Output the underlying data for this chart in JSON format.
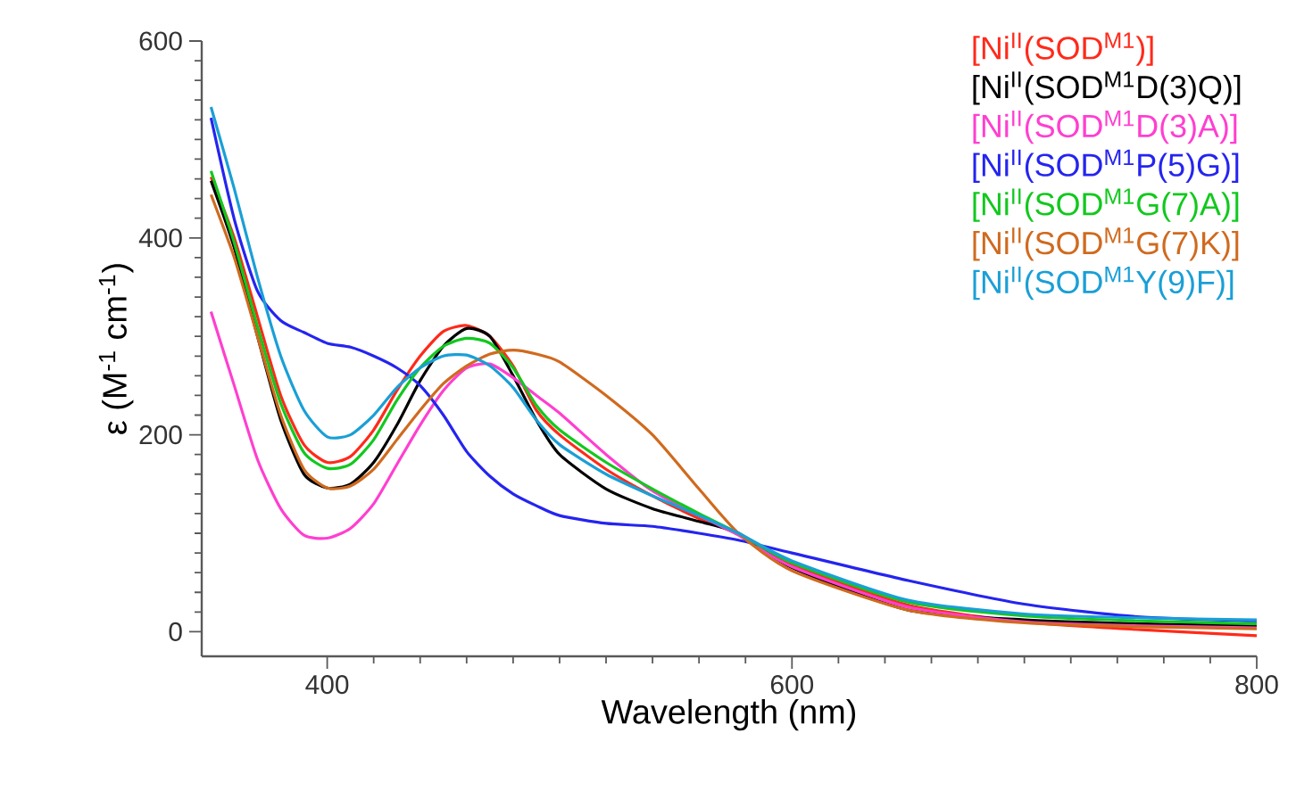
{
  "chart_data": {
    "type": "line",
    "xlabel": "Wavelength (nm)",
    "ylabel": "ε (M$^{-1}$ cm$^{-1}$)",
    "xlim": [
      346,
      800
    ],
    "ylim": [
      -25,
      600
    ],
    "xticks": [
      400,
      600,
      800
    ],
    "yticks": [
      0,
      200,
      400,
      600
    ],
    "grid": false,
    "legend": "top right",
    "marker": "none",
    "line_style": "solid",
    "x": [
      350,
      360,
      370,
      380,
      390,
      400,
      410,
      420,
      430,
      440,
      450,
      460,
      470,
      480,
      490,
      500,
      520,
      540,
      560,
      577,
      600,
      650,
      700,
      750,
      800
    ],
    "series": [
      {
        "name": "[Ni$^{II}$(SOD$^{M1}$)]",
        "color": "#ff2a1a",
        "values": [
          462,
          400,
          320,
          240,
          190,
          172,
          178,
          205,
          245,
          280,
          305,
          311,
          300,
          270,
          225,
          200,
          165,
          138,
          115,
          99,
          68,
          27,
          10,
          2,
          -4
        ]
      },
      {
        "name": "[Ni$^{II}$(SOD$^{M1}$D(3)Q)]",
        "color": "#000000",
        "values": [
          458,
          390,
          300,
          215,
          160,
          146,
          150,
          172,
          210,
          255,
          290,
          308,
          300,
          260,
          215,
          180,
          145,
          125,
          112,
          100,
          65,
          22,
          12,
          8,
          6
        ]
      },
      {
        "name": "[Ni$^{II}$(SOD$^{M1}$D(3)A)]",
        "color": "#ff3fd0",
        "values": [
          325,
          250,
          175,
          125,
          98,
          95,
          105,
          130,
          170,
          210,
          245,
          268,
          272,
          258,
          240,
          222,
          180,
          143,
          118,
          98,
          66,
          25,
          10,
          6,
          4
        ]
      },
      {
        "name": "[Ni$^{II}$(SOD$^{M1}$P(5)G)]",
        "color": "#2424f0",
        "values": [
          522,
          419,
          346,
          316,
          304,
          293,
          289,
          280,
          268,
          250,
          220,
          183,
          158,
          140,
          128,
          118,
          110,
          107,
          100,
          93,
          80,
          52,
          28,
          15,
          11
        ]
      },
      {
        "name": "[Ni$^{II}$(SOD$^{M1}$G(7)A)]",
        "color": "#12c81e",
        "values": [
          468,
          395,
          310,
          232,
          182,
          166,
          170,
          195,
          235,
          268,
          290,
          298,
          293,
          268,
          230,
          205,
          172,
          145,
          120,
          100,
          70,
          30,
          16,
          11,
          8
        ]
      },
      {
        "name": "[Ni$^{II}$(SOD$^{M1}$G(7)K)]",
        "color": "#d06a1e",
        "values": [
          444,
          380,
          300,
          220,
          165,
          146,
          148,
          165,
          195,
          225,
          252,
          270,
          282,
          286,
          282,
          274,
          240,
          200,
          145,
          100,
          62,
          22,
          9,
          5,
          3
        ]
      },
      {
        "name": "[Ni$^{II}$(SOD$^{M1}$Y(9)F)]",
        "color": "#1a9fd6",
        "values": [
          533,
          450,
          360,
          280,
          225,
          198,
          200,
          220,
          248,
          268,
          280,
          281,
          270,
          248,
          215,
          190,
          160,
          138,
          118,
          100,
          72,
          32,
          18,
          14,
          12
        ]
      }
    ]
  }
}
